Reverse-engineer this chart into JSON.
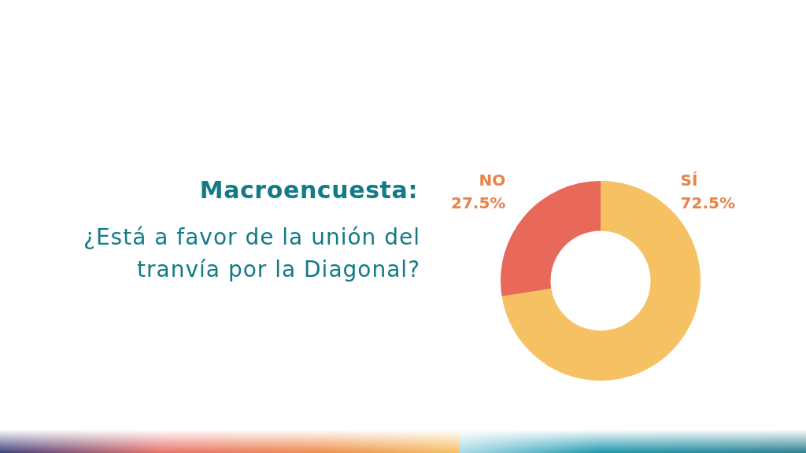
{
  "chart_data": {
    "type": "donut",
    "title": "Macroencuesta:",
    "subtitle": "¿Está a favor de la unión del tranvía por la Diagonal?",
    "categories": [
      "SÍ",
      "NO"
    ],
    "values": [
      72.5,
      27.5
    ],
    "value_labels": [
      "72.5%",
      "27.5%"
    ],
    "colors": [
      "#f5c163",
      "#e8685a"
    ],
    "legend": false
  }
}
